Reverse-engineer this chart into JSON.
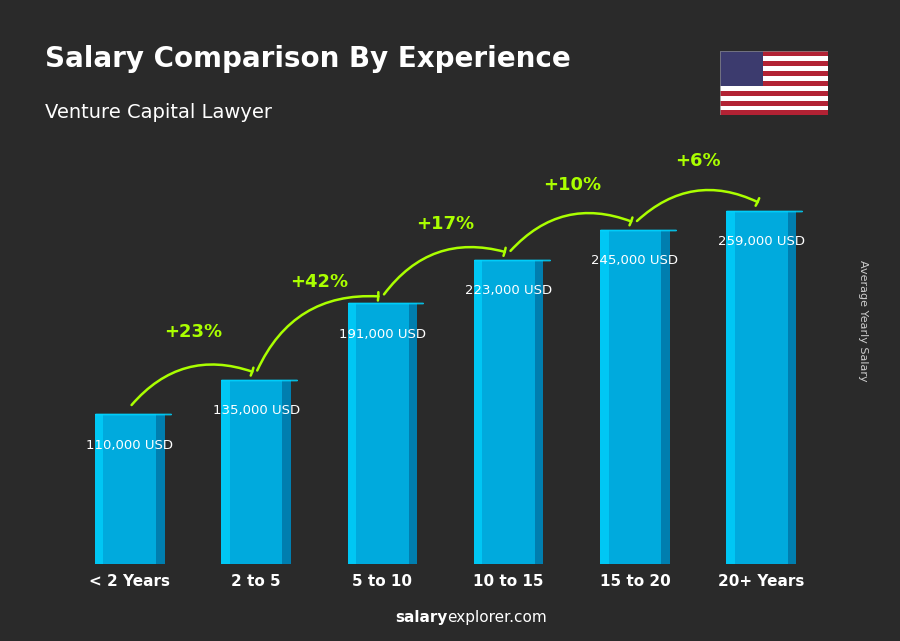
{
  "title": "Salary Comparison By Experience",
  "subtitle": "Venture Capital Lawyer",
  "categories": [
    "< 2 Years",
    "2 to 5",
    "5 to 10",
    "10 to 15",
    "15 to 20",
    "20+ Years"
  ],
  "values": [
    110000,
    135000,
    191000,
    223000,
    245000,
    259000
  ],
  "value_labels": [
    "110,000 USD",
    "135,000 USD",
    "191,000 USD",
    "223,000 USD",
    "245,000 USD",
    "259,000 USD"
  ],
  "pct_changes": [
    "+23%",
    "+42%",
    "+17%",
    "+10%",
    "+6%"
  ],
  "bar_color_top": "#00d4ff",
  "bar_color_mid": "#00aadd",
  "bar_color_dark": "#007aaa",
  "background_color": "#2a2a2a",
  "title_color": "#ffffff",
  "subtitle_color": "#ffffff",
  "label_color": "#ffffff",
  "pct_color": "#aaff00",
  "arrow_color": "#aaff00",
  "xlabel_color": "#ffffff",
  "footer_text": "salaryexplorer.com",
  "footer_salary": "salary",
  "footer_explorer": "explorer",
  "right_label": "Average Yearly Salary",
  "ylim": [
    0,
    310000
  ]
}
